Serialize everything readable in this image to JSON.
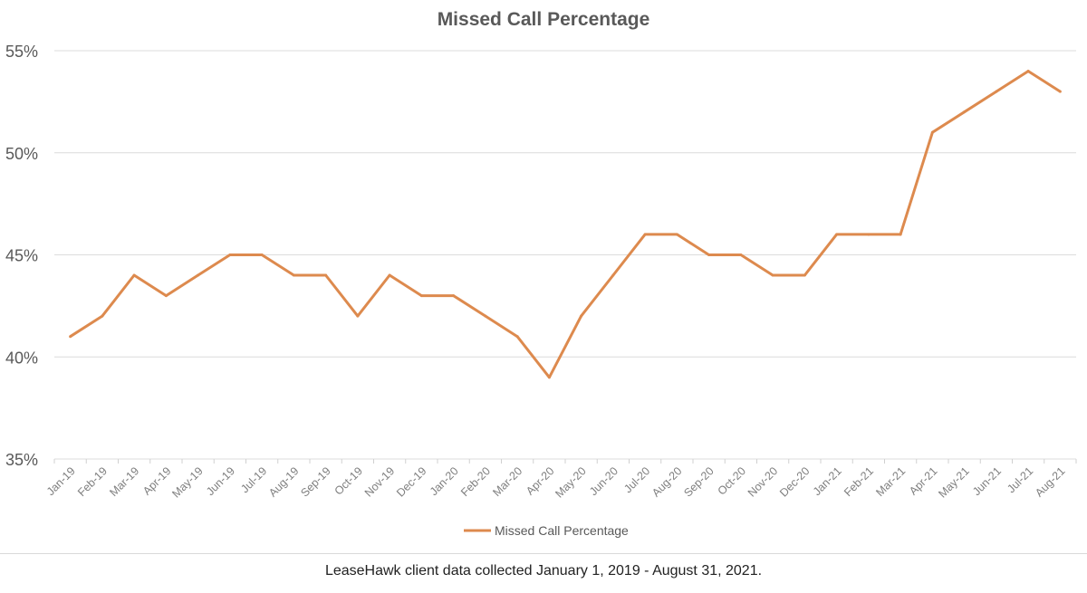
{
  "chart_data": {
    "type": "line",
    "title": "Missed Call Percentage",
    "xlabel": "",
    "ylabel": "",
    "ylim": [
      35,
      55
    ],
    "yticks": [
      "35%",
      "40%",
      "45%",
      "50%",
      "55%"
    ],
    "ytick_values": [
      35,
      40,
      45,
      50,
      55
    ],
    "grid": true,
    "legend_position": "bottom",
    "categories": [
      "Jan-19",
      "Feb-19",
      "Mar-19",
      "Apr-19",
      "May-19",
      "Jun-19",
      "Jul-19",
      "Aug-19",
      "Sep-19",
      "Oct-19",
      "Nov-19",
      "Dec-19",
      "Jan-20",
      "Feb-20",
      "Mar-20",
      "Apr-20",
      "May-20",
      "Jun-20",
      "Jul-20",
      "Aug-20",
      "Sep-20",
      "Oct-20",
      "Nov-20",
      "Dec-20",
      "Jan-21",
      "Feb-21",
      "Mar-21",
      "Apr-21",
      "May-21",
      "Jun-21",
      "Jul-21",
      "Aug-21"
    ],
    "series": [
      {
        "name": "Missed Call Percentage",
        "color": "#dd8a4e",
        "values": [
          41,
          42,
          44,
          43,
          44,
          45,
          45,
          44,
          44,
          42,
          44,
          43,
          43,
          42,
          41,
          39,
          42,
          44,
          46,
          46,
          45,
          45,
          44,
          44,
          46,
          46,
          46,
          51,
          52,
          53,
          54,
          53
        ]
      }
    ]
  },
  "caption": "LeaseHawk client data collected January 1, 2019 - August 31, 2021."
}
